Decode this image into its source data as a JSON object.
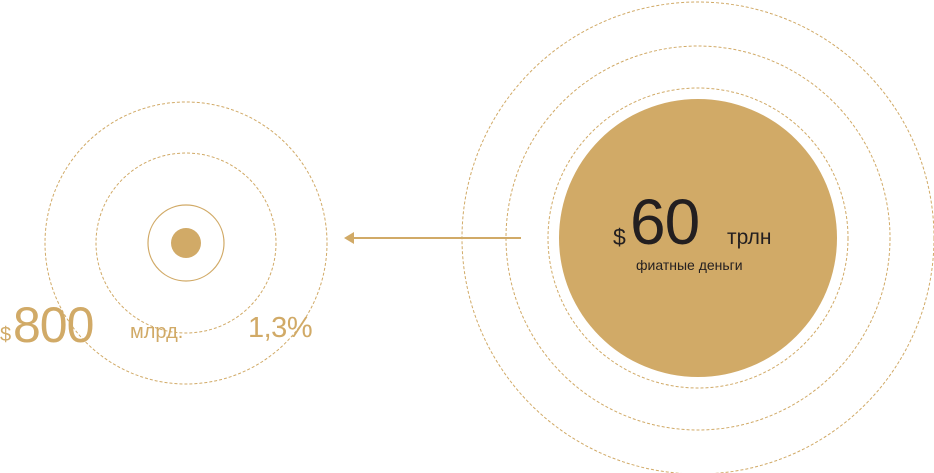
{
  "colors": {
    "gold": "#d1aa67",
    "dark_text": "#231f20",
    "background": "#ffffff"
  },
  "small_cluster": {
    "currency": "$",
    "amount": "800",
    "unit": "млрд.",
    "share": "1,3%"
  },
  "big_cluster": {
    "currency": "$",
    "amount": "60",
    "unit": "трлн",
    "caption": "фиатные деньги"
  },
  "connector": {
    "direction": "right-to-left",
    "icon": "arrow-left-icon"
  }
}
